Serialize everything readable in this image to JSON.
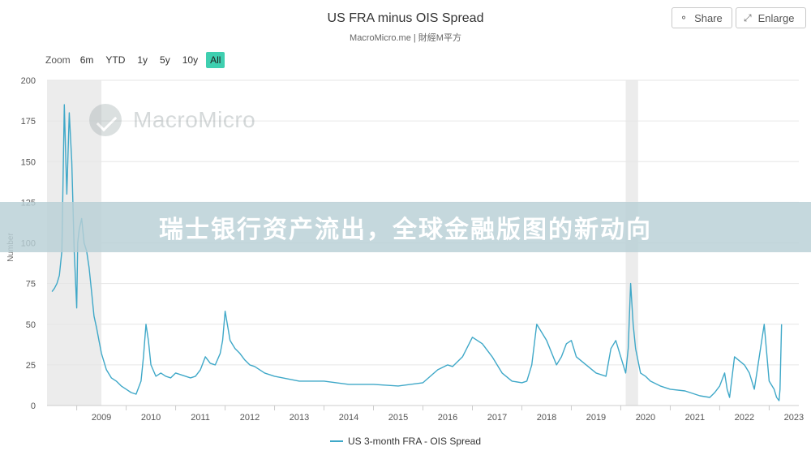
{
  "header": {
    "title": "US FRA minus OIS Spread",
    "subtitle": "MacroMicro.me | 財經M平方",
    "share_label": "Share",
    "enlarge_label": "Enlarge",
    "share_icon": "share-icon",
    "enlarge_icon": "enlarge-icon"
  },
  "range_selector": {
    "zoom_label": "Zoom",
    "buttons": [
      "6m",
      "YTD",
      "1y",
      "5y",
      "10y",
      "All"
    ],
    "selected": "All"
  },
  "watermark": {
    "text": "MacroMicro"
  },
  "banner": {
    "text": "瑞士银行资产流出，全球金融版图的新动向"
  },
  "colors": {
    "series": "#3fa8c8",
    "accent": "#3fcfb0",
    "shade": "#ececec"
  },
  "chart_data": {
    "type": "line",
    "title": "US FRA minus OIS Spread",
    "subtitle": "MacroMicro.me | 財經M平方",
    "ylabel": "Number",
    "xlabel": "",
    "ylim": [
      0,
      200
    ],
    "xlim": [
      2008.4,
      2023.6
    ],
    "yticks": [
      0,
      25,
      50,
      75,
      100,
      125,
      150,
      175,
      200
    ],
    "xticks": [
      2009,
      2010,
      2011,
      2012,
      2013,
      2014,
      2015,
      2016,
      2017,
      2018,
      2019,
      2020,
      2021,
      2022,
      2023
    ],
    "grid": true,
    "legend_position": "bottom",
    "recession_shading": [
      [
        2008.4,
        2009.5
      ],
      [
        2020.1,
        2020.35
      ]
    ],
    "series": [
      {
        "name": "US 3-month FRA - OIS Spread",
        "x": [
          2008.5,
          2008.55,
          2008.6,
          2008.65,
          2008.7,
          2008.75,
          2008.78,
          2008.8,
          2008.85,
          2008.9,
          2008.95,
          2009.0,
          2009.02,
          2009.05,
          2009.1,
          2009.15,
          2009.2,
          2009.25,
          2009.3,
          2009.35,
          2009.4,
          2009.45,
          2009.5,
          2009.6,
          2009.7,
          2009.8,
          2009.9,
          2010.0,
          2010.1,
          2010.2,
          2010.3,
          2010.35,
          2010.4,
          2010.45,
          2010.5,
          2010.6,
          2010.7,
          2010.8,
          2010.9,
          2011.0,
          2011.1,
          2011.2,
          2011.3,
          2011.4,
          2011.5,
          2011.6,
          2011.7,
          2011.8,
          2011.9,
          2011.95,
          2012.0,
          2012.1,
          2012.2,
          2012.3,
          2012.4,
          2012.5,
          2012.6,
          2012.7,
          2012.8,
          2013.0,
          2013.5,
          2014.0,
          2014.5,
          2015.0,
          2015.5,
          2016.0,
          2016.3,
          2016.5,
          2016.6,
          2016.8,
          2017.0,
          2017.2,
          2017.4,
          2017.6,
          2017.8,
          2018.0,
          2018.1,
          2018.2,
          2018.3,
          2018.5,
          2018.7,
          2018.8,
          2018.9,
          2019.0,
          2019.1,
          2019.3,
          2019.5,
          2019.7,
          2019.8,
          2019.9,
          2020.0,
          2020.1,
          2020.15,
          2020.2,
          2020.25,
          2020.3,
          2020.4,
          2020.5,
          2020.6,
          2020.8,
          2021.0,
          2021.3,
          2021.6,
          2021.8,
          2021.9,
          2022.0,
          2022.1,
          2022.15,
          2022.2,
          2022.3,
          2022.5,
          2022.6,
          2022.7,
          2022.75,
          2022.8,
          2022.9,
          2023.0,
          2023.1,
          2023.15,
          2023.2,
          2023.22,
          2023.25
        ],
        "values": [
          70,
          72,
          75,
          80,
          95,
          185,
          150,
          130,
          180,
          150,
          95,
          60,
          100,
          108,
          115,
          100,
          95,
          85,
          70,
          55,
          48,
          40,
          32,
          22,
          17,
          15,
          12,
          10,
          8,
          7,
          15,
          30,
          50,
          40,
          25,
          18,
          20,
          18,
          17,
          20,
          19,
          18,
          17,
          18,
          22,
          30,
          26,
          25,
          32,
          40,
          58,
          40,
          35,
          32,
          28,
          25,
          24,
          22,
          20,
          18,
          15,
          15,
          13,
          13,
          12,
          14,
          22,
          25,
          24,
          30,
          42,
          38,
          30,
          20,
          15,
          14,
          15,
          25,
          50,
          40,
          25,
          30,
          38,
          40,
          30,
          25,
          20,
          18,
          35,
          40,
          30,
          20,
          35,
          75,
          50,
          35,
          20,
          18,
          15,
          12,
          10,
          9,
          6,
          5,
          8,
          12,
          20,
          10,
          5,
          30,
          25,
          20,
          10,
          20,
          30,
          50,
          15,
          10,
          5,
          3,
          10,
          50
        ]
      }
    ]
  }
}
